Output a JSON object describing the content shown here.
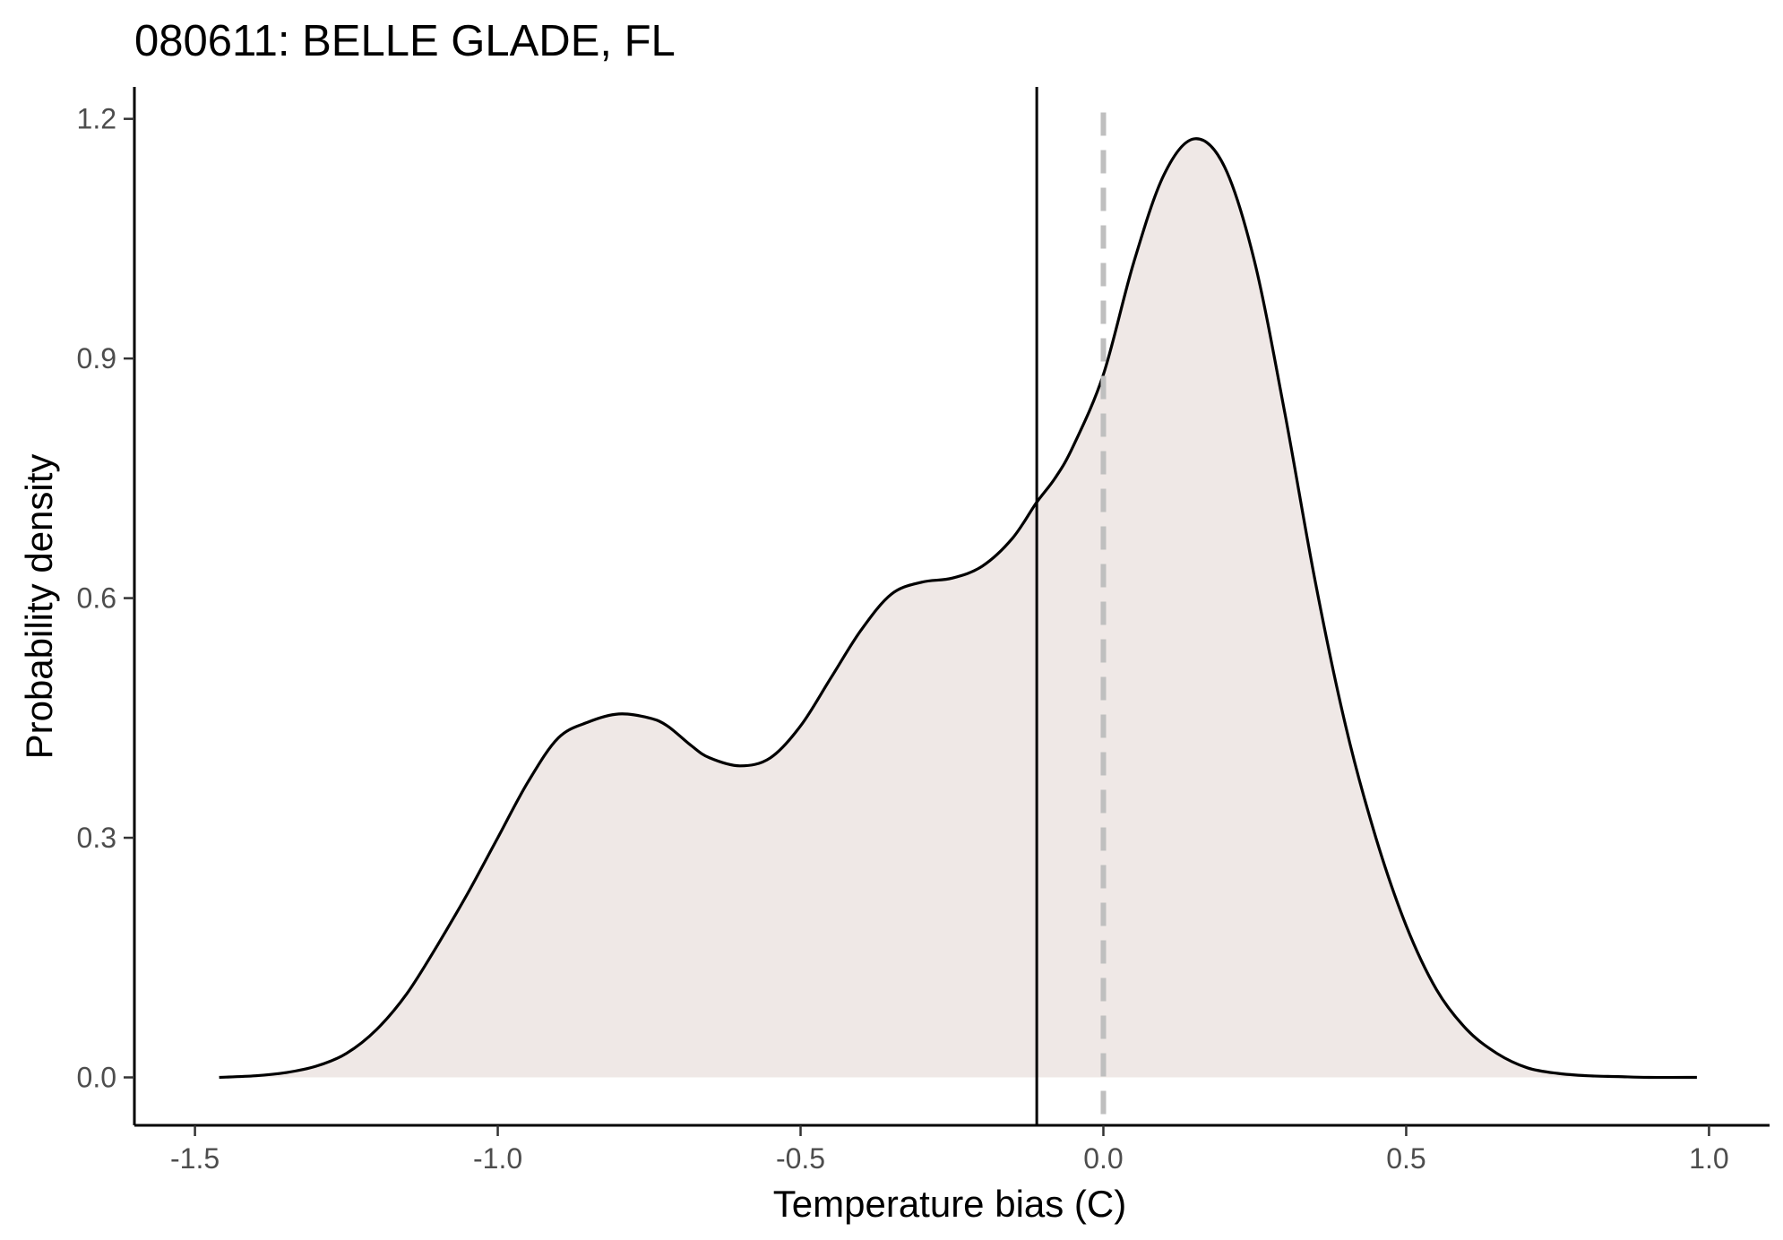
{
  "chart_data": {
    "type": "area",
    "title": "080611: BELLE GLADE, FL",
    "xlabel": "Temperature bias (C)",
    "ylabel": "Probability density",
    "xlim": [
      -1.6,
      1.1
    ],
    "ylim": [
      -0.06,
      1.24
    ],
    "x_ticks": [
      -1.5,
      -1.0,
      -0.5,
      0.0,
      0.5,
      1.0
    ],
    "x_tick_labels": [
      "-1.5",
      "-1.0",
      "-0.5",
      "0.0",
      "0.5",
      "1.0"
    ],
    "y_ticks": [
      0.0,
      0.3,
      0.6,
      0.9,
      1.2
    ],
    "y_tick_labels": [
      "0.0",
      "0.3",
      "0.6",
      "0.9",
      "1.2"
    ],
    "grid": false,
    "fill_color": "#efe8e6",
    "line_color": "#000000",
    "density": {
      "x": [
        -1.46,
        -1.4,
        -1.35,
        -1.3,
        -1.25,
        -1.2,
        -1.15,
        -1.1,
        -1.05,
        -1.0,
        -0.95,
        -0.9,
        -0.85,
        -0.8,
        -0.75,
        -0.72,
        -0.68,
        -0.65,
        -0.6,
        -0.55,
        -0.5,
        -0.45,
        -0.4,
        -0.35,
        -0.3,
        -0.25,
        -0.2,
        -0.15,
        -0.11,
        -0.08,
        -0.05,
        0.0,
        0.05,
        0.1,
        0.15,
        0.2,
        0.25,
        0.3,
        0.35,
        0.4,
        0.45,
        0.5,
        0.55,
        0.6,
        0.65,
        0.7,
        0.75,
        0.8,
        0.85,
        0.9,
        0.98
      ],
      "y": [
        0.0,
        0.002,
        0.006,
        0.014,
        0.03,
        0.06,
        0.105,
        0.165,
        0.23,
        0.3,
        0.37,
        0.425,
        0.445,
        0.455,
        0.45,
        0.44,
        0.415,
        0.4,
        0.39,
        0.4,
        0.44,
        0.5,
        0.56,
        0.605,
        0.62,
        0.625,
        0.64,
        0.675,
        0.72,
        0.75,
        0.79,
        0.88,
        1.02,
        1.13,
        1.175,
        1.14,
        1.02,
        0.83,
        0.62,
        0.44,
        0.3,
        0.19,
        0.11,
        0.06,
        0.03,
        0.012,
        0.005,
        0.002,
        0.001,
        0.0,
        0.0
      ]
    },
    "vlines": [
      {
        "x": -0.11,
        "color": "#000000",
        "style": "solid"
      },
      {
        "x": 0.0,
        "color": "#bfbfbf",
        "style": "dashed"
      }
    ]
  }
}
